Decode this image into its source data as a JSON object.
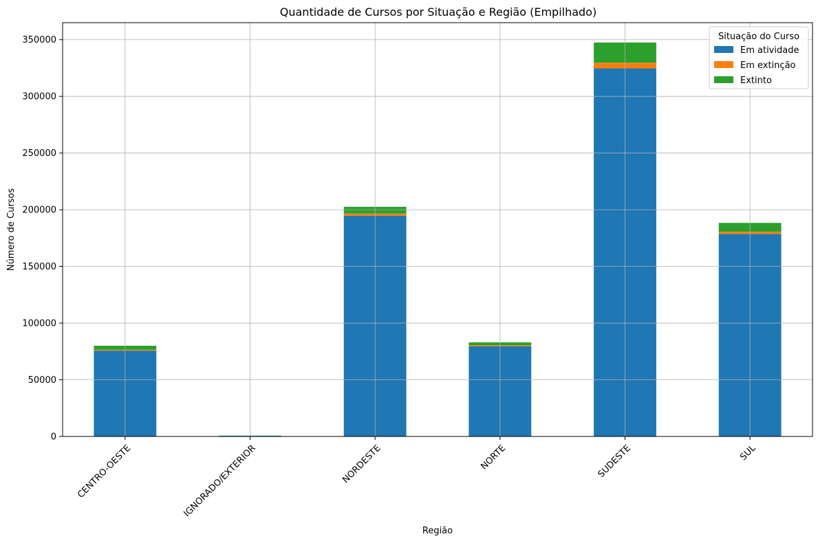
{
  "chart_data": {
    "type": "bar",
    "stacked": true,
    "title": "Quantidade de Cursos por Situação e Região (Empilhado)",
    "xlabel": "Região",
    "ylabel": "Número de Cursos",
    "categories": [
      "CENTRO-OESTE",
      "IGNORADO/EXTERIOR",
      "NORDESTE",
      "NORTE",
      "SUDESTE",
      "SUL"
    ],
    "series": [
      {
        "name": "Em atividade",
        "color": "#1f77b4",
        "values": [
          75700,
          600,
          194700,
          79500,
          324700,
          178600
        ]
      },
      {
        "name": "Em extinção",
        "color": "#ff7f0e",
        "values": [
          800,
          0,
          1900,
          900,
          5000,
          2000
        ]
      },
      {
        "name": "Extinto",
        "color": "#2ca02c",
        "values": [
          3500,
          100,
          6000,
          2600,
          17800,
          7800
        ]
      }
    ],
    "ylim": [
      0,
      365000
    ],
    "yticks": [
      0,
      50000,
      100000,
      150000,
      200000,
      250000,
      300000,
      350000
    ],
    "grid": true,
    "legend": {
      "title": "Situação do Curso",
      "placement": "top-right"
    }
  }
}
